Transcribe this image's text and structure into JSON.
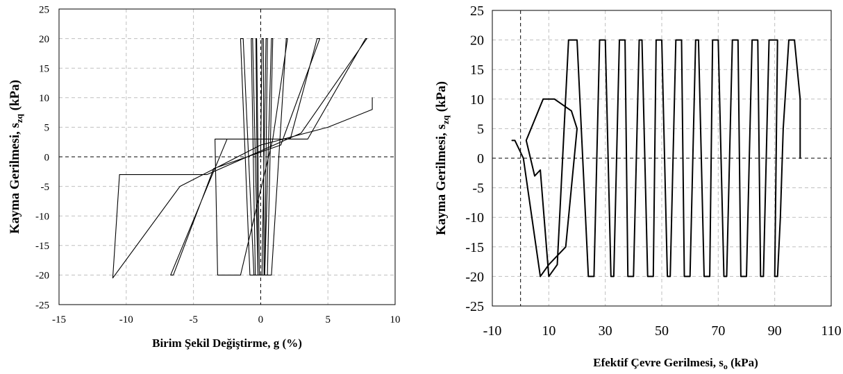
{
  "chart_data": [
    {
      "type": "line",
      "title": "",
      "xlabel": "Birim Şekil Değiştirme, g (%)",
      "ylabel_main": "Kayma Gerilmesi, s",
      "ylabel_sub": "zq",
      "ylabel_unit": " (kPa)",
      "xlim": [
        -15,
        10
      ],
      "ylim": [
        -25,
        25
      ],
      "xticks": [
        "-15",
        "-10",
        "-5",
        "0",
        "5",
        "10"
      ],
      "yticks": [
        "25",
        "20",
        "15",
        "10",
        "5",
        "0",
        "-5",
        "-10",
        "-15",
        "-20",
        "-25"
      ],
      "grid": true,
      "series": [
        {
          "x": [
            0.0,
            0.1,
            0.2,
            0.25,
            0.2,
            -0.1,
            -0.3,
            -0.35,
            -0.2,
            0.1,
            0.4,
            0.5,
            0.3,
            -0.2,
            -0.6,
            -0.7,
            -0.4,
            0.3,
            0.8,
            0.9,
            0.5,
            -0.5,
            -1.3,
            -1.5,
            -0.8,
            0.8,
            1.9,
            2.0,
            0.9,
            -1.5,
            -3.2,
            -3.4,
            -1.5,
            2.2,
            4.2,
            4.4,
            1.5,
            -3.5,
            -6.5,
            -6.7,
            -2.5,
            3.5,
            7.8,
            7.9,
            3.0,
            -4.0,
            -10.5,
            -11.0,
            -6.0,
            0.0,
            5.0,
            8.3,
            8.3
          ],
          "y": [
            0,
            20,
            20,
            -20,
            -20,
            -20,
            20,
            20,
            -20,
            -20,
            20,
            20,
            -20,
            -20,
            20,
            20,
            -20,
            -20,
            20,
            20,
            -20,
            -20,
            20,
            20,
            -20,
            -20,
            20,
            20,
            3,
            -20,
            -20,
            3,
            3,
            3,
            20,
            20,
            2,
            -2,
            -20,
            -20,
            3,
            3,
            20,
            20,
            4,
            -3,
            -3,
            -20.5,
            -5,
            2,
            5,
            8,
            10
          ]
        }
      ]
    },
    {
      "type": "line",
      "title": "",
      "xlabel_main": "Efektif Çevre Gerilmesi, s",
      "xlabel_sub": "o",
      "xlabel_unit": " (kPa)",
      "ylabel_main": "Kayma Gerilmesi, s",
      "ylabel_sub": "zq",
      "ylabel_unit": " (kPa)",
      "xlim": [
        -10,
        110
      ],
      "ylim": [
        -25,
        25
      ],
      "xticks": [
        "-10",
        "10",
        "30",
        "50",
        "70",
        "90",
        "110"
      ],
      "yticks": [
        "25",
        "20",
        "15",
        "10",
        "5",
        "0",
        "-5",
        "-10",
        "-15",
        "-20",
        "-25"
      ],
      "grid": true,
      "series": [
        {
          "x": [
            99,
            99,
            97,
            95,
            93,
            92,
            91,
            90,
            91,
            88,
            86,
            85,
            84,
            82,
            80,
            78,
            77,
            75,
            73,
            72,
            70,
            68,
            67,
            65,
            63,
            62,
            60,
            58,
            57,
            55,
            53,
            52,
            50,
            48,
            47,
            45,
            43,
            42,
            40,
            38,
            37,
            35,
            33,
            32,
            30,
            28,
            26,
            24,
            20,
            17,
            13,
            10,
            7,
            5,
            3,
            2,
            8,
            12,
            18,
            20,
            16,
            10,
            7,
            4,
            1,
            -2,
            -3
          ],
          "y": [
            0,
            10,
            20,
            20,
            5,
            -10,
            -20,
            -20,
            20,
            20,
            -20,
            -20,
            20,
            20,
            -20,
            -20,
            20,
            20,
            -20,
            -20,
            20,
            20,
            -20,
            -20,
            20,
            20,
            -20,
            -20,
            20,
            20,
            -20,
            -20,
            20,
            20,
            -20,
            -20,
            20,
            20,
            -20,
            -20,
            20,
            20,
            -20,
            -20,
            20,
            20,
            -20,
            -20,
            20,
            20,
            -18,
            -20,
            -2,
            -3,
            1,
            3,
            10,
            10,
            8,
            5,
            -15,
            -18,
            -20,
            -10,
            0,
            3,
            3
          ]
        }
      ]
    }
  ]
}
